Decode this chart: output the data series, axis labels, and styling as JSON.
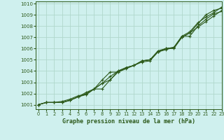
{
  "title": "Graphe pression niveau de la mer (hPa)",
  "bg_color": "#cff0ee",
  "grid_color": "#b0d8cc",
  "line_color": "#2d5a1b",
  "marker_color": "#2d5a1b",
  "xlim": [
    -0.3,
    23
  ],
  "ylim": [
    1000.6,
    1010.2
  ],
  "yticks": [
    1001,
    1002,
    1003,
    1004,
    1005,
    1006,
    1007,
    1008,
    1009,
    1010
  ],
  "xticks": [
    0,
    1,
    2,
    3,
    4,
    5,
    6,
    7,
    8,
    9,
    10,
    11,
    12,
    13,
    14,
    15,
    16,
    17,
    18,
    19,
    20,
    21,
    22,
    23
  ],
  "series": [
    [
      1001.0,
      1001.2,
      1001.2,
      1001.2,
      1001.4,
      1001.7,
      1002.0,
      1002.4,
      1002.9,
      1003.5,
      1004.0,
      1004.3,
      1004.5,
      1004.9,
      1005.0,
      1005.7,
      1006.0,
      1006.1,
      1007.0,
      1007.4,
      1008.2,
      1009.0,
      1009.4,
      1009.6
    ],
    [
      1001.0,
      1001.2,
      1001.2,
      1001.2,
      1001.4,
      1001.7,
      1002.1,
      1002.4,
      1002.4,
      1003.2,
      1004.0,
      1004.3,
      1004.5,
      1004.8,
      1004.9,
      1005.7,
      1005.9,
      1006.1,
      1007.1,
      1007.1,
      1008.0,
      1008.6,
      1009.1,
      1009.3
    ],
    [
      1001.0,
      1001.2,
      1001.2,
      1001.2,
      1001.4,
      1001.7,
      1001.9,
      1002.4,
      1003.2,
      1003.9,
      1003.9,
      1004.2,
      1004.5,
      1004.9,
      1005.0,
      1005.7,
      1006.0,
      1006.0,
      1007.0,
      1007.4,
      1007.9,
      1008.4,
      1008.9,
      1009.4
    ],
    [
      1001.0,
      1001.2,
      1001.2,
      1001.3,
      1001.5,
      1001.8,
      1001.9,
      1002.4,
      1002.9,
      1003.2,
      1003.9,
      1004.3,
      1004.5,
      1004.9,
      1005.0,
      1005.8,
      1006.0,
      1006.1,
      1007.1,
      1007.5,
      1008.3,
      1008.8,
      1009.2,
      1009.7
    ]
  ]
}
